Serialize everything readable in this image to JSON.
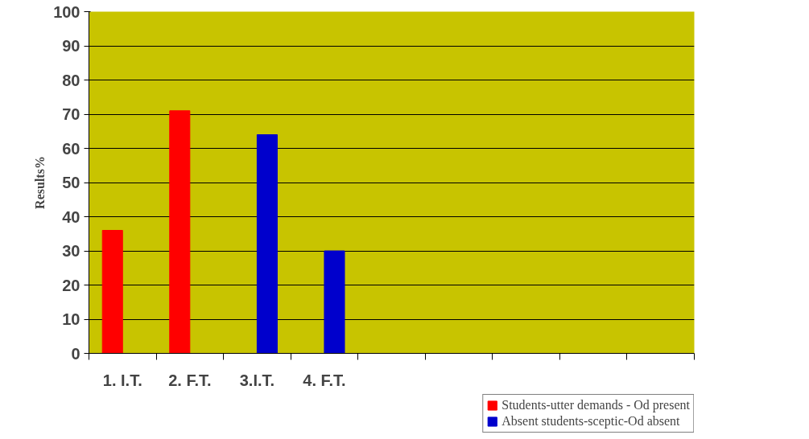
{
  "chart_data": {
    "type": "bar",
    "ylabel": "Results%",
    "categories": [
      "1. I.T.",
      "2. F.T.",
      "3.I.T.",
      "4. F.T.",
      null,
      null,
      null,
      null,
      null
    ],
    "series": [
      {
        "name": "Students-utter demands - Od present",
        "color": "#ff0000",
        "values": [
          36,
          71,
          null,
          null,
          null,
          null,
          null,
          null,
          null
        ]
      },
      {
        "name": "Absent students-sceptic-Od absent",
        "color": "#0000cc",
        "values": [
          null,
          null,
          64,
          30,
          null,
          null,
          null,
          null,
          null
        ]
      }
    ],
    "ylim": [
      0,
      100
    ],
    "yticks": [
      0,
      10,
      20,
      30,
      40,
      50,
      60,
      70,
      80,
      90,
      100
    ],
    "grid": "y",
    "legend": "bottom right"
  }
}
